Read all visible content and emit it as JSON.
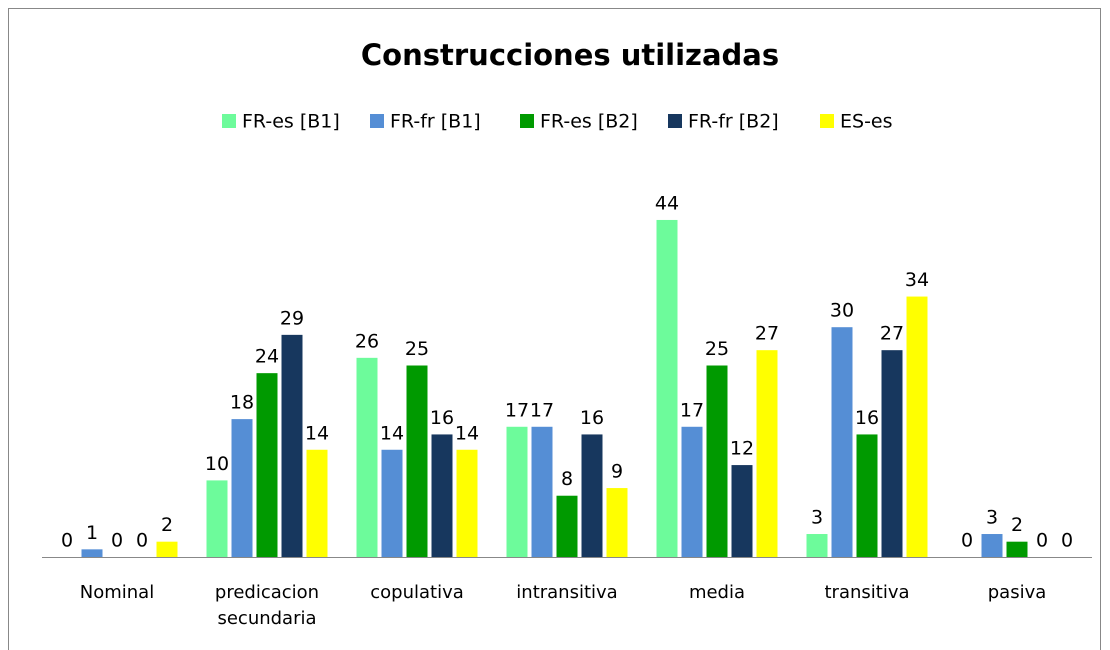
{
  "chart_data": {
    "type": "bar",
    "title": "Construcciones utilizadas",
    "categories": [
      "Nominal",
      "predicacion secundaria",
      "copulativa",
      "intransitiva",
      "media",
      "transitiva",
      "pasiva"
    ],
    "series": [
      {
        "name": "FR-es [B1]",
        "color": "#6dfb9b",
        "values": [
          0,
          10,
          26,
          17,
          44,
          3,
          0
        ]
      },
      {
        "name": "FR-fr [B1]",
        "color": "#558ed5",
        "values": [
          1,
          18,
          14,
          17,
          17,
          30,
          3
        ]
      },
      {
        "name": "FR-es [B2]",
        "color": "#009a00",
        "values": [
          0,
          24,
          25,
          8,
          25,
          16,
          2
        ]
      },
      {
        "name": "FR-fr [B2]",
        "color": "#17375e",
        "values": [
          0,
          29,
          16,
          16,
          12,
          27,
          0
        ]
      },
      {
        "name": "ES-es",
        "color": "#ffff00",
        "values": [
          2,
          14,
          14,
          9,
          27,
          34,
          0
        ]
      }
    ],
    "legend": "top"
  }
}
